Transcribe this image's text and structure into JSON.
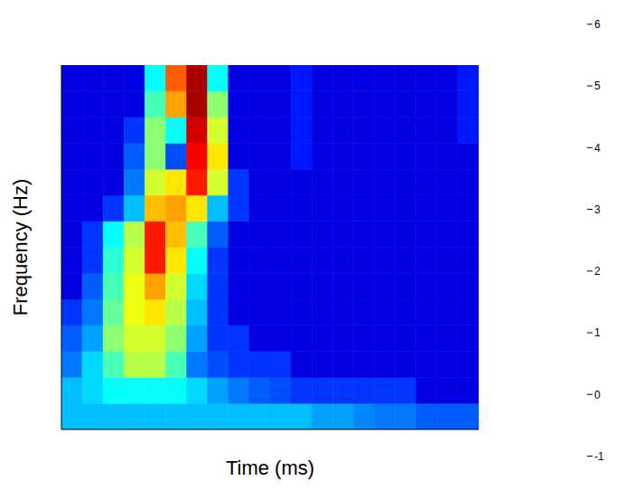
{
  "chart_data": {
    "type": "heatmap",
    "x_label": "Time (ms)",
    "y_label": "Frequency (Hz)",
    "xlim": [
      0,
      20
    ],
    "ylim": [
      0,
      14
    ],
    "xticks": [],
    "yticks": [],
    "tick_labels": false,
    "z": [
      [
        1.0,
        1.0,
        1.0,
        1.0,
        1.0,
        1.0,
        1.0,
        1.0,
        1.0,
        1.0,
        1.0,
        1.0,
        0.8,
        0.8,
        0.6,
        0.5,
        0.5,
        0.3,
        0.3,
        0.3
      ],
      [
        1.0,
        1.2,
        1.5,
        1.5,
        1.5,
        1.5,
        1.2,
        0.8,
        0.5,
        0.3,
        0.2,
        0,
        0,
        0,
        0,
        0,
        0,
        -0.6,
        -0.6,
        -0.6
      ],
      [
        0.5,
        1.2,
        2.0,
        2.8,
        2.8,
        2.0,
        0.5,
        0.2,
        0,
        0,
        0,
        -0.6,
        -0.6,
        -0.6,
        -0.6,
        -0.6,
        -0.6,
        -0.6,
        -0.6,
        -0.6
      ],
      [
        0.3,
        0.8,
        2.5,
        3.0,
        3.0,
        2.5,
        0.8,
        0,
        0,
        -0.6,
        -0.6,
        -0.6,
        -0.6,
        -0.6,
        -0.6,
        -0.6,
        -0.6,
        -0.6,
        -0.6,
        -0.6
      ],
      [
        0,
        0.5,
        2.2,
        3.2,
        3.5,
        2.8,
        1.0,
        0,
        -0.6,
        -0.6,
        -0.6,
        -0.6,
        -0.6,
        -0.6,
        -0.6,
        -0.6,
        -0.6,
        -0.6,
        -0.6,
        -0.6
      ],
      [
        -0.6,
        0.3,
        2.0,
        3.2,
        4.0,
        3.0,
        1.2,
        0,
        -0.6,
        -0.6,
        -0.6,
        -0.6,
        -0.6,
        -0.6,
        -0.6,
        -0.6,
        -0.6,
        -0.6,
        -0.6,
        -0.6
      ],
      [
        -0.6,
        0,
        1.8,
        3.0,
        5.0,
        3.5,
        1.5,
        0,
        -0.6,
        -0.6,
        -0.6,
        -0.6,
        -0.6,
        -0.6,
        -0.6,
        -0.6,
        -0.6,
        -0.6,
        -0.6,
        -0.6
      ],
      [
        -0.6,
        0,
        1.5,
        2.8,
        5.0,
        3.8,
        2.0,
        0.3,
        -0.6,
        -0.6,
        -0.6,
        -0.6,
        -0.6,
        -0.6,
        -0.6,
        -0.6,
        -0.6,
        -0.6,
        -0.6,
        -0.6
      ],
      [
        -0.6,
        -0.6,
        0,
        1.0,
        3.8,
        4.0,
        3.5,
        1.0,
        0,
        -0.6,
        -0.6,
        -0.6,
        -0.6,
        -0.6,
        -0.6,
        -0.6,
        -0.6,
        -0.6,
        -0.6,
        -0.6
      ],
      [
        -0.6,
        -0.6,
        -0.6,
        0.5,
        3.0,
        3.5,
        5.0,
        3.0,
        0,
        -0.6,
        -0.6,
        -0.6,
        -0.6,
        -0.6,
        -0.6,
        -0.6,
        -0.6,
        -0.6,
        -0.6,
        -0.6
      ],
      [
        -0.6,
        -0.6,
        -0.6,
        0.3,
        2.5,
        0.2,
        5.2,
        3.5,
        -0.6,
        -0.6,
        -0.6,
        -0.2,
        -0.6,
        -0.6,
        -0.6,
        -0.6,
        -0.6,
        -0.6,
        -0.6,
        -0.6
      ],
      [
        -0.6,
        -0.6,
        -0.6,
        0,
        2.5,
        1.5,
        5.5,
        3.0,
        -0.6,
        -0.6,
        -0.6,
        -0.2,
        -0.6,
        -0.6,
        -0.6,
        -0.6,
        -0.6,
        -0.6,
        -0.6,
        -0.2
      ],
      [
        -0.6,
        -0.6,
        -0.6,
        -0.6,
        2.0,
        4.0,
        5.8,
        2.5,
        -0.6,
        -0.6,
        -0.6,
        -0.2,
        -0.6,
        -0.6,
        -0.6,
        -0.6,
        -0.6,
        -0.6,
        -0.6,
        -0.2
      ],
      [
        -0.6,
        -0.6,
        -0.6,
        -0.6,
        1.5,
        4.5,
        5.8,
        1.5,
        -0.6,
        -0.6,
        -0.6,
        -0.2,
        -0.6,
        -0.6,
        -0.6,
        -0.6,
        -0.6,
        -0.6,
        -0.6,
        -0.2
      ]
    ],
    "colorbar": {
      "range": [
        -1.3,
        6.1
      ],
      "ticks": [
        -1,
        0,
        1,
        2,
        3,
        4,
        5,
        6
      ]
    }
  }
}
